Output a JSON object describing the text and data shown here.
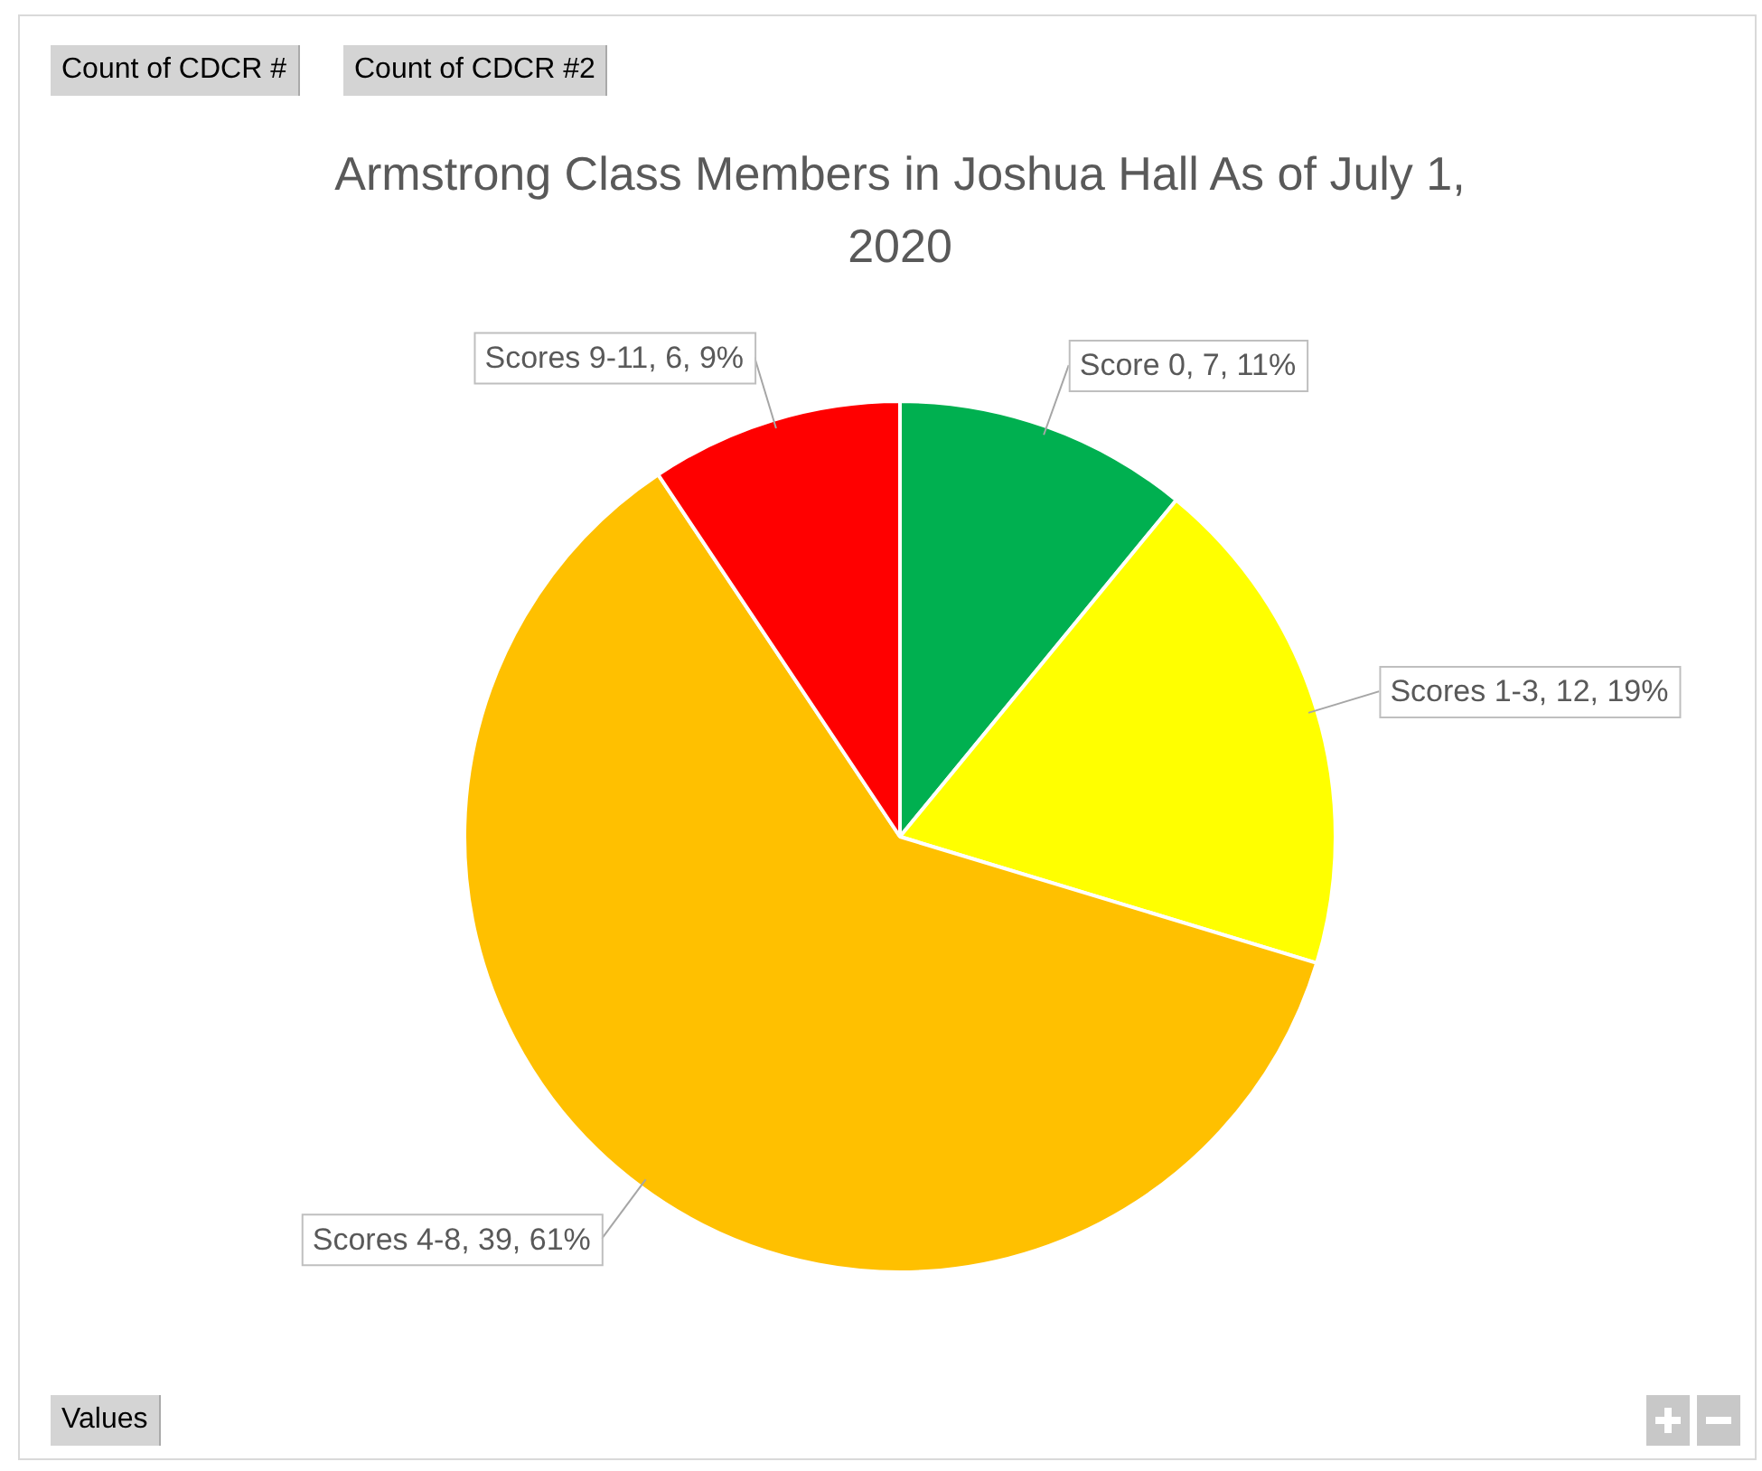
{
  "chart_data": {
    "type": "pie",
    "title": "Armstrong Class Members in Joshua Hall As of July 1, 2020",
    "categories": [
      "Score 0",
      "Scores 1-3",
      "Scores 4-8",
      "Scores 9-11"
    ],
    "values": [
      7,
      12,
      39,
      6
    ],
    "colors": [
      "#00b050",
      "#ffff00",
      "#ffc000",
      "#ff0000"
    ],
    "value_labels": [
      "7, 11%",
      "12, 19%",
      "39, 61%",
      "6, 9%"
    ],
    "legend": false,
    "annotations": [
      "Count of CDCR #",
      "Count of CDCR #2",
      "Values"
    ]
  }
}
